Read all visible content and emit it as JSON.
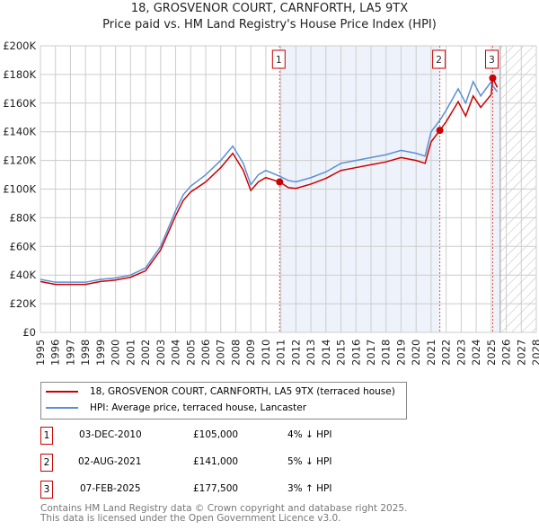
{
  "chart_data": {
    "type": "line",
    "title": "18, GROSVENOR COURT, CARNFORTH, LA5 9TX",
    "subtitle": "Price paid vs. HM Land Registry's House Price Index (HPI)",
    "xlim": [
      1995,
      2028
    ],
    "ylim": [
      0,
      200000
    ],
    "yticks": [
      0,
      20000,
      40000,
      60000,
      80000,
      100000,
      120000,
      140000,
      160000,
      180000,
      200000
    ],
    "ytick_labels": [
      "£0",
      "£20K",
      "£40K",
      "£60K",
      "£80K",
      "£100K",
      "£120K",
      "£140K",
      "£160K",
      "£180K",
      "£200K"
    ],
    "xticks": [
      "1995",
      "1996",
      "1997",
      "1998",
      "1999",
      "2000",
      "2001",
      "2002",
      "2003",
      "2004",
      "2005",
      "2006",
      "2007",
      "2008",
      "2009",
      "2010",
      "2011",
      "2012",
      "2013",
      "2014",
      "2015",
      "2016",
      "2017",
      "2018",
      "2019",
      "2020",
      "2021",
      "2022",
      "2023",
      "2024",
      "2025",
      "2026",
      "2027",
      "2028"
    ],
    "grid": true,
    "forecast_hatch_start": 2025.6,
    "series": [
      {
        "name": "18, GROSVENOR COURT, CARNFORTH, LA5 9TX (terraced house)",
        "color": "#cc0000",
        "x": [
          1995,
          1996,
          1997,
          1998,
          1999,
          2000,
          2001,
          2002,
          2003,
          2004,
          2004.5,
          2005,
          2006,
          2007,
          2007.8,
          2008.5,
          2009,
          2009.5,
          2010,
          2010.92,
          2011.5,
          2012,
          2013,
          2014,
          2015,
          2016,
          2017,
          2018,
          2019,
          2020,
          2020.6,
          2021,
          2021.58,
          2022,
          2022.8,
          2023.3,
          2023.8,
          2024.3,
          2025,
          2025.1,
          2025.4
        ],
        "y": [
          35500,
          33500,
          33500,
          33500,
          35500,
          36500,
          38500,
          43000,
          57500,
          81500,
          92000,
          98000,
          105000,
          115000,
          125000,
          113000,
          99000,
          105000,
          108000,
          105000,
          101000,
          100500,
          103500,
          107500,
          113000,
          115000,
          117000,
          119000,
          122000,
          120000,
          118000,
          133000,
          141000,
          147000,
          161000,
          151000,
          165000,
          157000,
          166000,
          177500,
          171000
        ]
      },
      {
        "name": "HPI: Average price, terraced house, Lancaster",
        "color": "#5b8fd6",
        "x": [
          1995,
          1996,
          1997,
          1998,
          1999,
          2000,
          2001,
          2002,
          2003,
          2004,
          2004.5,
          2005,
          2006,
          2007,
          2007.8,
          2008.5,
          2009,
          2009.5,
          2010,
          2010.92,
          2011.5,
          2012,
          2013,
          2014,
          2015,
          2016,
          2017,
          2018,
          2019,
          2020,
          2020.6,
          2021,
          2021.58,
          2022,
          2022.8,
          2023.3,
          2023.8,
          2024.3,
          2025,
          2025.1,
          2025.4
        ],
        "y": [
          37000,
          35000,
          35000,
          35000,
          37000,
          38000,
          40000,
          45000,
          60000,
          85000,
          96000,
          102000,
          110000,
          120000,
          130000,
          118000,
          103000,
          110000,
          113000,
          109000,
          106000,
          105000,
          108000,
          112000,
          118000,
          120000,
          122000,
          124000,
          127000,
          125000,
          123000,
          140000,
          148000,
          155000,
          170000,
          160000,
          175000,
          165000,
          175000,
          172000,
          168000
        ]
      }
    ],
    "sales": [
      {
        "label": "1",
        "x": 2010.92,
        "y": 105000,
        "date": "03-DEC-2010",
        "price": "£105,000",
        "hpi": "4% ↓ HPI"
      },
      {
        "label": "2",
        "x": 2021.58,
        "y": 141000,
        "date": "02-AUG-2021",
        "price": "£141,000",
        "hpi": "5% ↓ HPI"
      },
      {
        "label": "3",
        "x": 2025.1,
        "y": 177500,
        "date": "07-FEB-2025",
        "price": "£177,500",
        "hpi": "3% ↑ HPI"
      }
    ]
  },
  "footer": [
    "Contains HM Land Registry data © Crown copyright and database right 2025.",
    "This data is licensed under the Open Government Licence v3.0."
  ]
}
